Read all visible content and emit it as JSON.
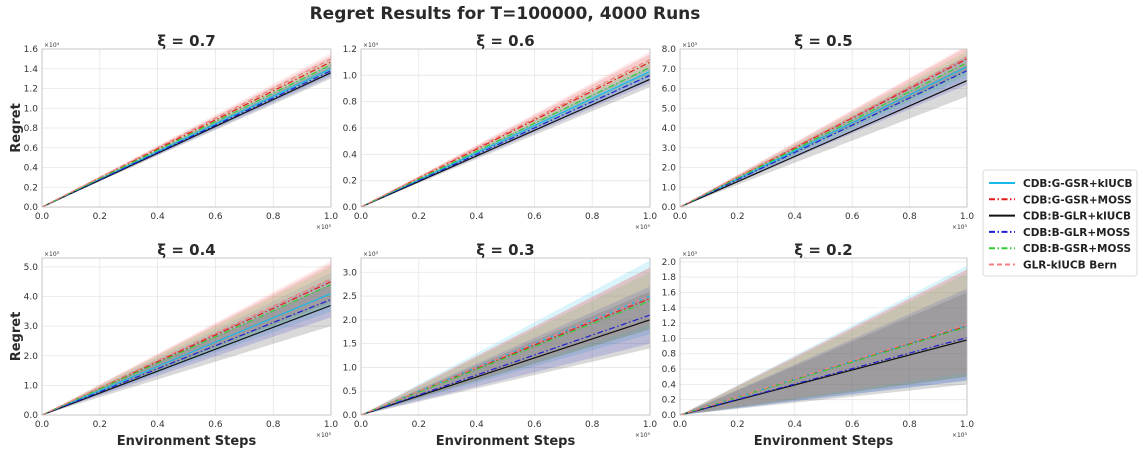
{
  "suptitle": "Regret Results for T=100000, 4000 Runs",
  "legend": {
    "placement": "right",
    "entries": [
      {
        "name": "CDB:G-GSR+klUCB",
        "color": "#1ab8e8",
        "dash": "solid"
      },
      {
        "name": "CDB:G-GSR+MOSS",
        "color": "#e31a1c",
        "dash": "dashdot"
      },
      {
        "name": "CDB:B-GLR+klUCB",
        "color": "#111111",
        "dash": "solid"
      },
      {
        "name": "CDB:B-GLR+MOSS",
        "color": "#1f1fd6",
        "dash": "dashdot"
      },
      {
        "name": "CDB:B-GSR+MOSS",
        "color": "#33cc33",
        "dash": "dashdot"
      },
      {
        "name": "GLR-klUCB Bern",
        "color": "#f08080",
        "dash": "dashed"
      }
    ]
  },
  "chart_data": [
    {
      "type": "line",
      "title": "ξ = 0.7",
      "xlabel": "",
      "ylabel": "Regret",
      "xlim": [
        0,
        1.0
      ],
      "ylim": [
        0,
        1.6
      ],
      "xticks": [
        "0.0",
        "0.2",
        "0.4",
        "0.6",
        "0.8",
        "1.0"
      ],
      "yticks": [
        "0.0",
        "0.2",
        "0.4",
        "0.6",
        "0.8",
        "1.0",
        "1.2",
        "1.4",
        "1.6"
      ],
      "x_multiplier": "×10⁵",
      "y_multiplier": "×10⁴",
      "grid": true,
      "series": [
        {
          "name": "CDB:G-GSR+klUCB",
          "x": [
            0,
            1.0
          ],
          "y": [
            0,
            1.4
          ],
          "band": [
            1.34,
            1.46
          ]
        },
        {
          "name": "CDB:G-GSR+MOSS",
          "x": [
            0,
            1.0
          ],
          "y": [
            0,
            1.47
          ],
          "band": [
            1.41,
            1.53
          ]
        },
        {
          "name": "CDB:B-GLR+klUCB",
          "x": [
            0,
            1.0
          ],
          "y": [
            0,
            1.36
          ],
          "band": [
            1.3,
            1.42
          ]
        },
        {
          "name": "CDB:B-GLR+MOSS",
          "x": [
            0,
            1.0
          ],
          "y": [
            0,
            1.38
          ],
          "band": [
            1.32,
            1.44
          ]
        },
        {
          "name": "CDB:B-GSR+MOSS",
          "x": [
            0,
            1.0
          ],
          "y": [
            0,
            1.44
          ],
          "band": [
            1.38,
            1.5
          ]
        },
        {
          "name": "GLR-klUCB Bern",
          "x": [
            0,
            1.0
          ],
          "y": [
            0,
            1.5
          ],
          "band": [
            1.44,
            1.56
          ]
        }
      ]
    },
    {
      "type": "line",
      "title": "ξ = 0.6",
      "xlabel": "",
      "ylabel": "",
      "xlim": [
        0,
        1.0
      ],
      "ylim": [
        0,
        1.2
      ],
      "xticks": [
        "0.0",
        "0.2",
        "0.4",
        "0.6",
        "0.8",
        "1.0"
      ],
      "yticks": [
        "0.0",
        "0.2",
        "0.4",
        "0.6",
        "0.8",
        "1.0",
        "1.2"
      ],
      "x_multiplier": "×10⁵",
      "y_multiplier": "×10⁴",
      "grid": true,
      "series": [
        {
          "name": "CDB:G-GSR+klUCB",
          "x": [
            0,
            1.0
          ],
          "y": [
            0,
            1.03
          ],
          "band": [
            0.97,
            1.09
          ]
        },
        {
          "name": "CDB:G-GSR+MOSS",
          "x": [
            0,
            1.0
          ],
          "y": [
            0,
            1.1
          ],
          "band": [
            1.04,
            1.16
          ]
        },
        {
          "name": "CDB:B-GLR+klUCB",
          "x": [
            0,
            1.0
          ],
          "y": [
            0,
            0.97
          ],
          "band": [
            0.91,
            1.03
          ]
        },
        {
          "name": "CDB:B-GLR+MOSS",
          "x": [
            0,
            1.0
          ],
          "y": [
            0,
            1.0
          ],
          "band": [
            0.94,
            1.06
          ]
        },
        {
          "name": "CDB:B-GSR+MOSS",
          "x": [
            0,
            1.0
          ],
          "y": [
            0,
            1.06
          ],
          "band": [
            1.0,
            1.12
          ]
        },
        {
          "name": "GLR-klUCB Bern",
          "x": [
            0,
            1.0
          ],
          "y": [
            0,
            1.12
          ],
          "band": [
            1.06,
            1.18
          ]
        }
      ]
    },
    {
      "type": "line",
      "title": "ξ = 0.5",
      "xlabel": "",
      "ylabel": "",
      "xlim": [
        0,
        1.0
      ],
      "ylim": [
        0,
        8.0
      ],
      "xticks": [
        "0.0",
        "0.2",
        "0.4",
        "0.6",
        "0.8",
        "1.0"
      ],
      "yticks": [
        "0.0",
        "1.0",
        "2.0",
        "3.0",
        "4.0",
        "5.0",
        "6.0",
        "7.0",
        "8.0"
      ],
      "x_multiplier": "×10⁵",
      "y_multiplier": "×10³",
      "grid": true,
      "series": [
        {
          "name": "CDB:G-GSR+klUCB",
          "x": [
            0,
            1.0
          ],
          "y": [
            0,
            7.1
          ],
          "band": [
            6.5,
            7.7
          ]
        },
        {
          "name": "CDB:G-GSR+MOSS",
          "x": [
            0,
            1.0
          ],
          "y": [
            0,
            7.5
          ],
          "band": [
            6.9,
            8.1
          ]
        },
        {
          "name": "CDB:B-GLR+klUCB",
          "x": [
            0,
            1.0
          ],
          "y": [
            0,
            6.4
          ],
          "band": [
            5.6,
            7.2
          ]
        },
        {
          "name": "CDB:B-GLR+MOSS",
          "x": [
            0,
            1.0
          ],
          "y": [
            0,
            6.9
          ],
          "band": [
            6.2,
            7.6
          ]
        },
        {
          "name": "CDB:B-GSR+MOSS",
          "x": [
            0,
            1.0
          ],
          "y": [
            0,
            7.3
          ],
          "band": [
            6.7,
            7.9
          ]
        },
        {
          "name": "GLR-klUCB Bern",
          "x": [
            0,
            1.0
          ],
          "y": [
            0,
            7.6
          ],
          "band": [
            7.0,
            8.2
          ]
        }
      ]
    },
    {
      "type": "line",
      "title": "ξ = 0.4",
      "xlabel": "Environment Steps",
      "ylabel": "Regret",
      "xlim": [
        0,
        1.0
      ],
      "ylim": [
        0,
        5.3
      ],
      "xticks": [
        "0.0",
        "0.2",
        "0.4",
        "0.6",
        "0.8",
        "1.0"
      ],
      "yticks": [
        "0.0",
        "1.0",
        "2.0",
        "3.0",
        "4.0",
        "5.0"
      ],
      "x_multiplier": "×10⁵",
      "y_multiplier": "×10³",
      "grid": true,
      "series": [
        {
          "name": "CDB:G-GSR+klUCB",
          "x": [
            0,
            1.0
          ],
          "y": [
            0,
            4.1
          ],
          "band": [
            3.5,
            4.8
          ]
        },
        {
          "name": "CDB:G-GSR+MOSS",
          "x": [
            0,
            1.0
          ],
          "y": [
            0,
            4.5
          ],
          "band": [
            3.8,
            5.1
          ]
        },
        {
          "name": "CDB:B-GLR+klUCB",
          "x": [
            0,
            1.0
          ],
          "y": [
            0,
            3.7
          ],
          "band": [
            3.0,
            4.4
          ]
        },
        {
          "name": "CDB:B-GLR+MOSS",
          "x": [
            0,
            1.0
          ],
          "y": [
            0,
            3.9
          ],
          "band": [
            3.3,
            4.6
          ]
        },
        {
          "name": "CDB:B-GSR+MOSS",
          "x": [
            0,
            1.0
          ],
          "y": [
            0,
            4.4
          ],
          "band": [
            3.7,
            5.0
          ]
        },
        {
          "name": "GLR-klUCB Bern",
          "x": [
            0,
            1.0
          ],
          "y": [
            0,
            4.6
          ],
          "band": [
            3.9,
            5.2
          ]
        }
      ]
    },
    {
      "type": "line",
      "title": "ξ = 0.3",
      "xlabel": "Environment Steps",
      "ylabel": "",
      "xlim": [
        0,
        1.0
      ],
      "ylim": [
        0,
        3.3
      ],
      "xticks": [
        "0.0",
        "0.2",
        "0.4",
        "0.6",
        "0.8",
        "1.0"
      ],
      "yticks": [
        "0.0",
        "0.5",
        "1.0",
        "1.5",
        "2.0",
        "2.5",
        "3.0"
      ],
      "x_multiplier": "×10⁵",
      "y_multiplier": "×10³",
      "grid": true,
      "series": [
        {
          "name": "CDB:G-GSR+klUCB",
          "x": [
            0,
            1.0
          ],
          "y": [
            0,
            2.5
          ],
          "band": [
            1.7,
            3.25
          ]
        },
        {
          "name": "CDB:G-GSR+MOSS",
          "x": [
            0,
            1.0
          ],
          "y": [
            0,
            2.45
          ],
          "band": [
            1.8,
            3.1
          ]
        },
        {
          "name": "CDB:B-GLR+klUCB",
          "x": [
            0,
            1.0
          ],
          "y": [
            0,
            2.0
          ],
          "band": [
            1.4,
            2.6
          ]
        },
        {
          "name": "CDB:B-GLR+MOSS",
          "x": [
            0,
            1.0
          ],
          "y": [
            0,
            2.1
          ],
          "band": [
            1.5,
            2.7
          ]
        },
        {
          "name": "CDB:B-GSR+MOSS",
          "x": [
            0,
            1.0
          ],
          "y": [
            0,
            2.4
          ],
          "band": [
            1.8,
            3.0
          ]
        },
        {
          "name": "GLR-klUCB Bern",
          "x": [
            0,
            1.0
          ],
          "y": [
            0,
            2.5
          ],
          "band": [
            1.9,
            3.1
          ]
        }
      ]
    },
    {
      "type": "line",
      "title": "ξ = 0.2",
      "xlabel": "Environment Steps",
      "ylabel": "",
      "xlim": [
        0,
        1.0
      ],
      "ylim": [
        0,
        2.05
      ],
      "xticks": [
        "0.0",
        "0.2",
        "0.4",
        "0.6",
        "0.8",
        "1.0"
      ],
      "yticks": [
        "0.0",
        "0.2",
        "0.4",
        "0.6",
        "0.8",
        "1.0",
        "1.2",
        "1.4",
        "1.6",
        "1.8",
        "2.0"
      ],
      "x_multiplier": "×10⁵",
      "y_multiplier": "×10³",
      "grid": true,
      "series": [
        {
          "name": "CDB:G-GSR+klUCB",
          "x": [
            0,
            1.0
          ],
          "y": [
            0,
            1.17
          ],
          "band": [
            0.45,
            1.95
          ]
        },
        {
          "name": "CDB:G-GSR+MOSS",
          "x": [
            0,
            1.0
          ],
          "y": [
            0,
            1.16
          ],
          "band": [
            0.5,
            1.9
          ]
        },
        {
          "name": "CDB:B-GLR+klUCB",
          "x": [
            0,
            1.0
          ],
          "y": [
            0,
            0.98
          ],
          "band": [
            0.4,
            1.6
          ]
        },
        {
          "name": "CDB:B-GLR+MOSS",
          "x": [
            0,
            1.0
          ],
          "y": [
            0,
            1.01
          ],
          "band": [
            0.45,
            1.65
          ]
        },
        {
          "name": "CDB:B-GSR+MOSS",
          "x": [
            0,
            1.0
          ],
          "y": [
            0,
            1.15
          ],
          "band": [
            0.5,
            1.85
          ]
        },
        {
          "name": "GLR-klUCB Bern",
          "x": [
            0,
            1.0
          ],
          "y": [
            0,
            1.18
          ],
          "band": [
            0.55,
            1.9
          ]
        }
      ]
    }
  ]
}
